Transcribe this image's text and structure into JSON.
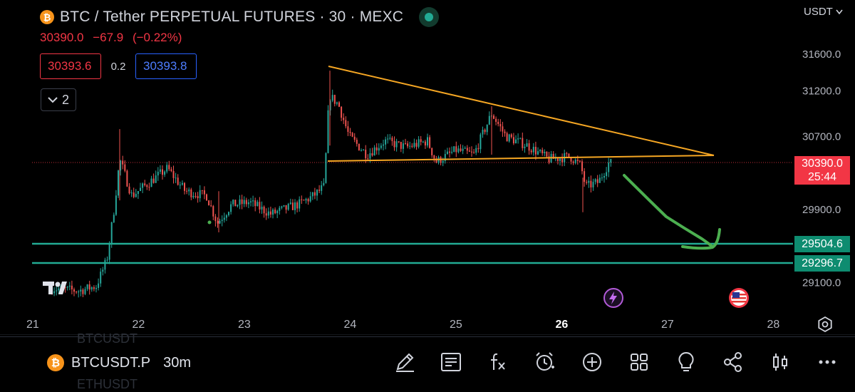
{
  "header": {
    "title": "BTC / Tether PERPETUAL FUTURES · 30 · MEXC",
    "last_price": "30390.0",
    "change": "−67.9",
    "change_pct": "(−0.22%)",
    "sell_price": "30393.6",
    "spread": "0.2",
    "buy_price": "30393.8",
    "indicator_count": "2",
    "currency": "USDT"
  },
  "price_axis": {
    "ticks": [
      "31600.0",
      "31200.0",
      "30700.0",
      "29900.0",
      "29100.0"
    ],
    "current_price": "30390.0",
    "countdown": "25:44",
    "level_1": "29504.6",
    "level_2": "29296.7"
  },
  "time_axis": {
    "ticks": [
      "21",
      "22",
      "23",
      "24",
      "25",
      "26",
      "27",
      "28"
    ],
    "bold_tick": "26"
  },
  "drawings": {
    "triangle_color": "#f5a623",
    "support_color": "#22ab94",
    "arrow_color": "#4caf50"
  },
  "colors": {
    "up": "#26a69a",
    "down": "#ef5350",
    "current_price_tag": "#f23645",
    "level_tag": "#0e8c70"
  },
  "bottom": {
    "symbol": "BTCUSDT.P",
    "timeframe": "30m",
    "ghost_above": "BTCUSDT",
    "ghost_below": "ETHUSDT",
    "tools": [
      "drawing-pen-icon",
      "notes-icon",
      "fx-indicator-icon",
      "alert-clock-icon",
      "add-icon",
      "layout-grid-icon",
      "ideas-lightbulb-icon",
      "share-icon",
      "chart-type-icon",
      "more-icon"
    ]
  }
}
